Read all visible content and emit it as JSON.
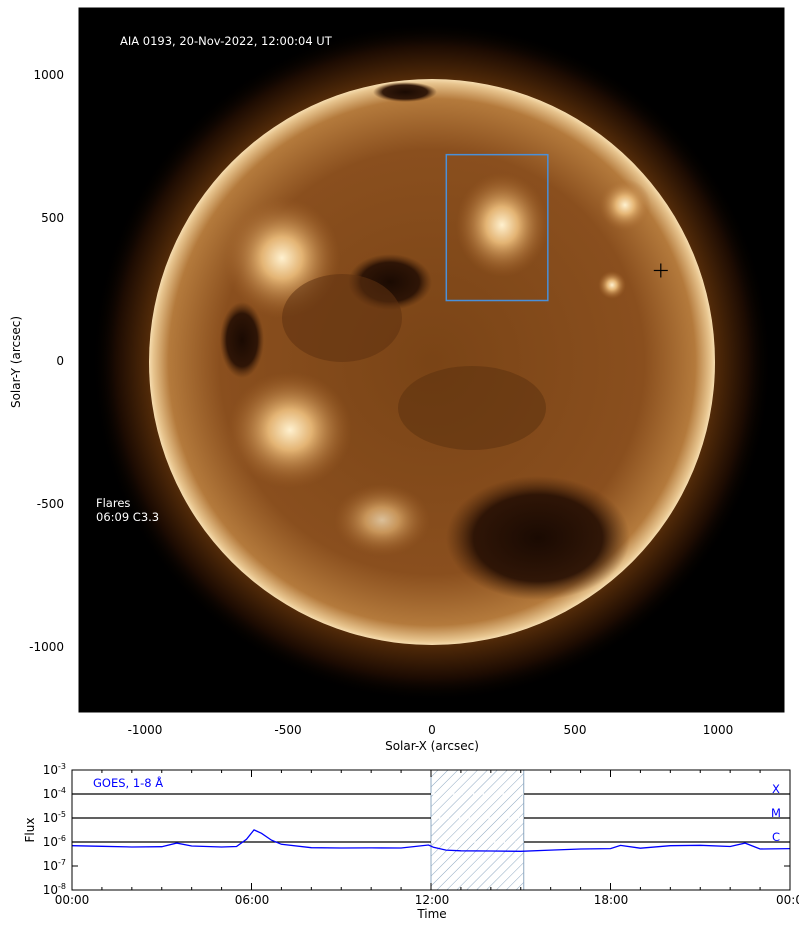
{
  "image_panel": {
    "title": "AIA 0193, 20-Nov-2022, 12:00:04 UT",
    "x_axis_label": "Solar-X (arcsec)",
    "y_axis_label": "Solar-Y (arcsec)",
    "x_ticks": [
      "-1000",
      "-500",
      "0",
      "500",
      "1000"
    ],
    "y_ticks": [
      "1000",
      "500",
      "0",
      "-500",
      "-1000"
    ],
    "flares_heading": "Flares",
    "flares_entry": "06:09 C3.3",
    "colors": {
      "background": "#000000",
      "sun_rim": "#f4dcab",
      "box": "#4a90d9"
    },
    "region_box_arcsec": {
      "x": [
        50,
        405
      ],
      "y": [
        215,
        725
      ]
    },
    "marker_arcsec": {
      "x": 800,
      "y": 320
    }
  },
  "goes_panel": {
    "label": "GOES, 1-8 Å",
    "y_axis_label": "Flux",
    "x_axis_label": "Time",
    "y_tick_base": "10",
    "y_tick_exponents": [
      "-3",
      "-4",
      "-5",
      "-6",
      "-7",
      "-8"
    ],
    "x_ticks": [
      "00:00",
      "06:00",
      "12:00",
      "18:00",
      "00:00"
    ],
    "class_labels": [
      "X",
      "M",
      "C"
    ],
    "colors": {
      "curve": "#0000ff",
      "hatch": "#8fa9c2"
    }
  },
  "chart_data": {
    "type": "line",
    "title": "",
    "xlabel": "Time",
    "ylabel": "Flux",
    "yscale": "log",
    "ylim": [
      1e-08,
      0.001
    ],
    "xlim": [
      "00:00",
      "24:00"
    ],
    "hlines": [
      0.0001,
      1e-05,
      1e-06
    ],
    "highlight_span": [
      "12:00",
      "15:06"
    ],
    "series": [
      {
        "name": "GOES, 1-8 Å",
        "x": [
          "00:00",
          "01:00",
          "02:00",
          "03:00",
          "03:30",
          "04:00",
          "05:00",
          "05:30",
          "05:50",
          "06:05",
          "06:20",
          "06:40",
          "07:00",
          "08:00",
          "09:00",
          "10:00",
          "11:00",
          "11:55",
          "12:05",
          "12:30",
          "13:00",
          "14:00",
          "15:00",
          "16:00",
          "17:00",
          "18:00",
          "18:20",
          "19:00",
          "20:00",
          "21:00",
          "22:00",
          "22:30",
          "23:00",
          "24:00"
        ],
        "y": [
          7e-07,
          6.6e-07,
          6.2e-07,
          6.4e-07,
          9e-07,
          6.8e-07,
          6.2e-07,
          6.5e-07,
          1.3e-06,
          3.2e-06,
          2.3e-06,
          1.2e-06,
          8e-07,
          5.8e-07,
          5.6e-07,
          5.7e-07,
          5.6e-07,
          7.5e-07,
          6e-07,
          4.6e-07,
          4.3e-07,
          4.2e-07,
          4.1e-07,
          4.6e-07,
          5.1e-07,
          5.3e-07,
          7.2e-07,
          5.5e-07,
          7e-07,
          7.3e-07,
          6.5e-07,
          9e-07,
          5.1e-07,
          5.3e-07
        ]
      }
    ]
  }
}
